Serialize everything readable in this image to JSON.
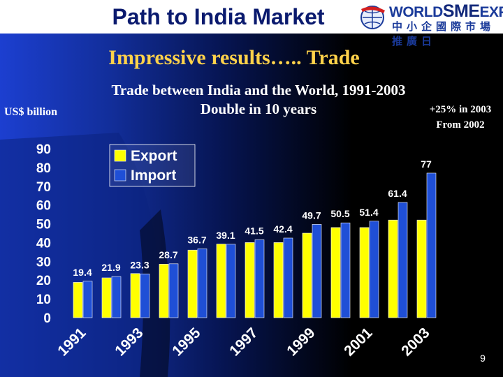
{
  "header": {
    "title": "Path to India Market"
  },
  "logo": {
    "text_en_part1": "WORLD",
    "text_en_part2": "SME",
    "text_en_part3": "EXPO",
    "text_cn": "中小企國際市場推廣日"
  },
  "subtitle": "Impressive results….. Trade",
  "note": {
    "line1": "+25% in 2003",
    "line2": "From 2002"
  },
  "page_number": "9",
  "colors": {
    "export": "#ffff00",
    "import": "#1f4fd6",
    "header_title": "#0a1a6e",
    "subtitle": "#ffd24a"
  },
  "chart_data": {
    "type": "bar",
    "title": "Trade between India and the World, 1991-2003",
    "subtitle": "Double in 10 years",
    "ylabel": "US$ billion",
    "xlabel": "",
    "ylim": [
      0,
      90
    ],
    "yticks": [
      "0",
      "10",
      "20",
      "30",
      "40",
      "50",
      "60",
      "70",
      "80",
      "90"
    ],
    "categories": [
      "1991",
      "1992",
      "1993",
      "1994",
      "1995",
      "1996",
      "1997",
      "1998",
      "1999",
      "2000",
      "2001",
      "2002",
      "2003"
    ],
    "x_tick_labels": [
      "1991",
      "1993",
      "1995",
      "1997",
      "1999",
      "2001",
      "2003"
    ],
    "legend_position": "top-left",
    "grid": false,
    "series": [
      {
        "name": "Export",
        "values": [
          18.8,
          21.2,
          23.5,
          28.5,
          36,
          39.2,
          40,
          40,
          45,
          48,
          48,
          52,
          52
        ]
      },
      {
        "name": "Import",
        "values": [
          19.4,
          21.9,
          23.3,
          28.7,
          36.7,
          39.1,
          41.5,
          42.4,
          49.7,
          50.5,
          51.4,
          61.4,
          77
        ]
      }
    ],
    "data_labels": [
      "19.4",
      "21.9",
      "23.3",
      "28.7",
      "36.7",
      "39.1",
      "41.5",
      "42.4",
      "49.7",
      "50.5",
      "51.4",
      "61.4",
      "77"
    ]
  }
}
